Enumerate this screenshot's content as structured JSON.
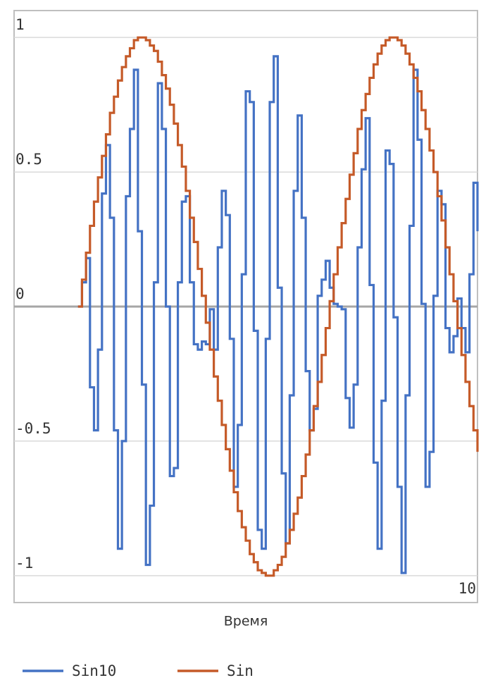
{
  "chart_data": {
    "type": "step-line",
    "x_label": "Время",
    "x": [
      0,
      0.1,
      0.2,
      0.3,
      0.4,
      0.5,
      0.6,
      0.7,
      0.8,
      0.9,
      1,
      1.1,
      1.2,
      1.3,
      1.4,
      1.5,
      1.6,
      1.7,
      1.8,
      1.9,
      2,
      2.1,
      2.2,
      2.3,
      2.4,
      2.5,
      2.6,
      2.7,
      2.8,
      2.9,
      3,
      3.1,
      3.2,
      3.3,
      3.4,
      3.5,
      3.6,
      3.7,
      3.8,
      3.9,
      4,
      4.1,
      4.2,
      4.3,
      4.4,
      4.5,
      4.6,
      4.7,
      4.8,
      4.9,
      5,
      5.1,
      5.2,
      5.3,
      5.4,
      5.5,
      5.6,
      5.7,
      5.8,
      5.9,
      6,
      6.1,
      6.2,
      6.3,
      6.4,
      6.5,
      6.6,
      6.7,
      6.8,
      6.9,
      7,
      7.1,
      7.2,
      7.3,
      7.4,
      7.5,
      7.6,
      7.7,
      7.8,
      7.9,
      8,
      8.1,
      8.2,
      8.3,
      8.4,
      8.5,
      8.6,
      8.7,
      8.8,
      8.9,
      9,
      9.1,
      9.2,
      9.3,
      9.4,
      9.5,
      9.6,
      9.7,
      9.8,
      9.9,
      10
    ],
    "series": [
      {
        "name": "Sin10",
        "color": "#4472c4",
        "values": [
          0,
          0.09,
          0.18,
          -0.3,
          -0.46,
          -0.16,
          0.42,
          0.6,
          0.33,
          -0.46,
          -0.9,
          -0.5,
          0.41,
          0.66,
          0.88,
          0.28,
          -0.29,
          -0.96,
          -0.74,
          0.09,
          0.83,
          0.66,
          0,
          -0.63,
          -0.6,
          0.09,
          0.39,
          0.41,
          0.09,
          -0.14,
          -0.16,
          -0.13,
          -0.14,
          -0.01,
          -0.16,
          0.22,
          0.43,
          0.34,
          -0.12,
          -0.67,
          -0.44,
          0.12,
          0.8,
          0.76,
          -0.09,
          -0.83,
          -0.9,
          -0.12,
          0.76,
          0.93,
          0.07,
          -0.62,
          -0.88,
          -0.33,
          0.43,
          0.71,
          0.33,
          -0.24,
          -0.46,
          -0.38,
          0.04,
          0.1,
          0.17,
          0.07,
          0.01,
          0,
          -0.01,
          -0.34,
          -0.45,
          -0.29,
          0.22,
          0.51,
          0.7,
          0.08,
          -0.58,
          -0.9,
          -0.35,
          0.58,
          0.53,
          -0.04,
          -0.67,
          -0.99,
          -0.33,
          0.3,
          0.88,
          0.62,
          0.01,
          -0.67,
          -0.54,
          0.04,
          0.43,
          0.38,
          -0.08,
          -0.17,
          -0.11,
          0.03,
          -0.08,
          -0.17,
          0.12,
          0.46,
          0.28
        ]
      },
      {
        "name": "Sin",
        "color": "#c55a28",
        "values": [
          0,
          0.1,
          0.2,
          0.3,
          0.39,
          0.48,
          0.56,
          0.64,
          0.72,
          0.78,
          0.84,
          0.89,
          0.93,
          0.96,
          0.99,
          1,
          1,
          0.99,
          0.97,
          0.95,
          0.91,
          0.86,
          0.81,
          0.75,
          0.68,
          0.6,
          0.52,
          0.43,
          0.33,
          0.24,
          0.14,
          0.04,
          -0.06,
          -0.16,
          -0.26,
          -0.35,
          -0.44,
          -0.53,
          -0.61,
          -0.69,
          -0.76,
          -0.82,
          -0.87,
          -0.92,
          -0.95,
          -0.98,
          -0.99,
          -1,
          -1,
          -0.98,
          -0.96,
          -0.93,
          -0.88,
          -0.83,
          -0.77,
          -0.71,
          -0.63,
          -0.55,
          -0.46,
          -0.37,
          -0.28,
          -0.18,
          -0.08,
          0.02,
          0.12,
          0.22,
          0.31,
          0.4,
          0.49,
          0.57,
          0.66,
          0.73,
          0.79,
          0.85,
          0.9,
          0.94,
          0.97,
          0.99,
          1,
          1,
          0.99,
          0.97,
          0.94,
          0.9,
          0.85,
          0.8,
          0.73,
          0.66,
          0.58,
          0.5,
          0.41,
          0.32,
          0.22,
          0.12,
          0.02,
          -0.08,
          -0.18,
          -0.28,
          -0.37,
          -0.46,
          -0.54
        ]
      }
    ],
    "xlim": [
      -1.6,
      10
    ],
    "xticks": [
      10
    ],
    "ylim": [
      -1.1,
      1.1
    ],
    "yticks": [
      -1,
      -0.5,
      0,
      0.5,
      1
    ],
    "grid": true
  }
}
